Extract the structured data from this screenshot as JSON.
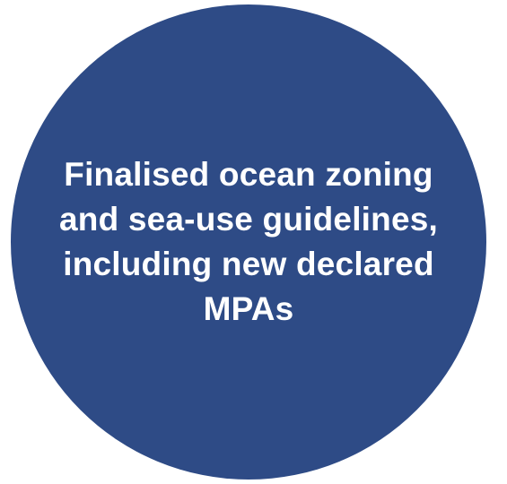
{
  "colors": {
    "circle_fill": "#2e4b86",
    "text": "#ffffff",
    "background": "#ffffff"
  },
  "circle": {
    "lines": [
      "Finalised ocean zoning",
      "and sea-use guidelines,",
      "including new declared",
      "MPAs"
    ]
  }
}
